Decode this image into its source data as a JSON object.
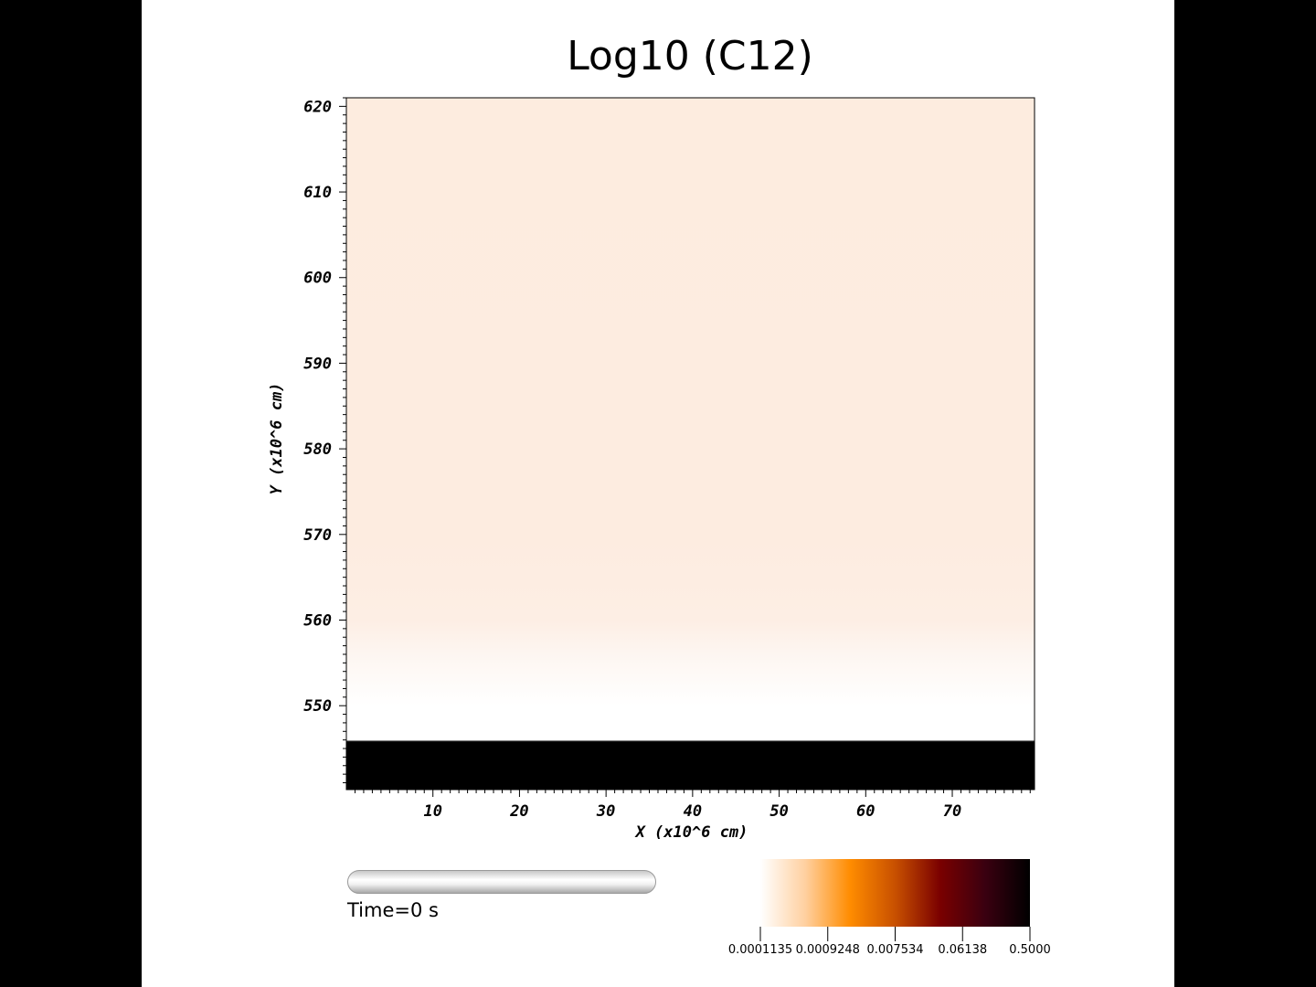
{
  "chart_data": {
    "type": "heatmap",
    "title": "Log10 (C12)",
    "xlabel": "X (x10^6 cm)",
    "ylabel": "Y (x10^6 cm)",
    "xlim": [
      0,
      79.5
    ],
    "ylim": [
      540.2,
      621
    ],
    "x_ticks": [
      10,
      20,
      30,
      40,
      50,
      60,
      70
    ],
    "y_ticks": [
      550,
      560,
      570,
      580,
      590,
      600,
      610,
      620
    ],
    "field_profile": [
      {
        "y": 541,
        "color": "#000000"
      },
      {
        "y": 545.8,
        "color": "#000000"
      },
      {
        "y": 546.0,
        "color": "#ffffff"
      },
      {
        "y": 550,
        "color": "#ffffff"
      },
      {
        "y": 556,
        "color": "#fdf6f1"
      },
      {
        "y": 560,
        "color": "#fdeee4"
      },
      {
        "y": 570,
        "color": "#fdece0"
      },
      {
        "y": 620,
        "color": "#fdecdf"
      }
    ],
    "colorbar": {
      "scale": "log",
      "tick_labels": [
        "0.0001135",
        "0.0009248",
        "0.007534",
        "0.06138",
        "0.5000"
      ],
      "colors": [
        "#ffffff",
        "#ffd0a0",
        "#ff8c00",
        "#c85000",
        "#7a0000",
        "#3a0010",
        "#000000"
      ]
    }
  },
  "time_label": "Time=0 s",
  "time_progress": 0
}
